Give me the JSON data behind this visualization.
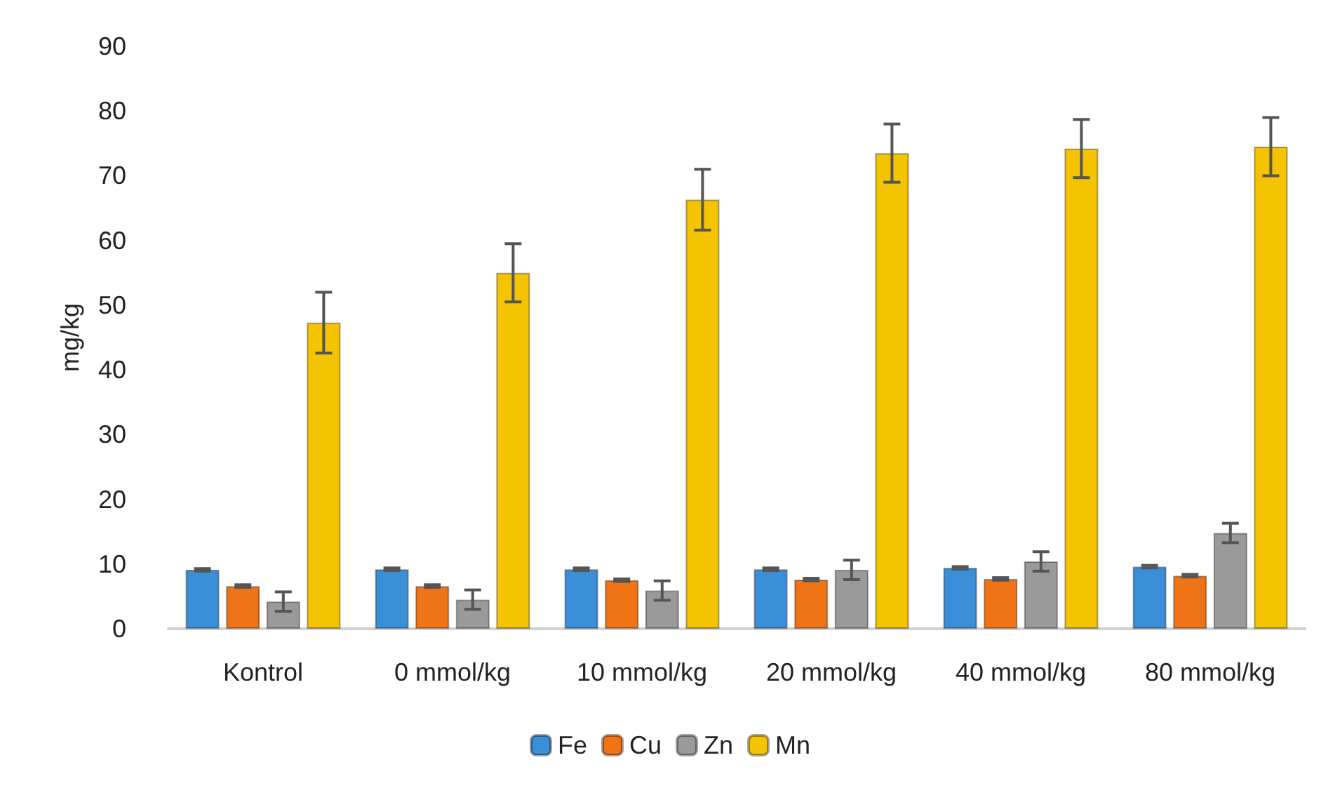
{
  "chart_data": {
    "type": "bar",
    "ylabel": "mg/kg",
    "categories": [
      "Kontrol",
      "0 mmol/kg",
      "10 mmol/kg",
      "20 mmol/kg",
      "40 mmol/kg",
      "80 mmol/kg"
    ],
    "series": [
      {
        "name": "Fe",
        "color": "#3b8ed8",
        "values": [
          9.1,
          9.2,
          9.2,
          9.2,
          9.4,
          9.6
        ],
        "errors": [
          0.2,
          0.2,
          0.2,
          0.2,
          0.2,
          0.2
        ]
      },
      {
        "name": "Cu",
        "color": "#f07416",
        "values": [
          6.6,
          6.6,
          7.5,
          7.6,
          7.7,
          8.2
        ],
        "errors": [
          0.2,
          0.2,
          0.2,
          0.2,
          0.2,
          0.2
        ]
      },
      {
        "name": "Zn",
        "color": "#9a9a9a",
        "values": [
          4.2,
          4.5,
          5.9,
          9.1,
          10.4,
          14.8
        ],
        "errors": [
          1.5,
          1.5,
          1.5,
          1.5,
          1.5,
          1.5
        ]
      },
      {
        "name": "Mn",
        "color": "#f5c400",
        "values": [
          47.3,
          55,
          66.3,
          73.5,
          74.2,
          74.5
        ],
        "errors": [
          4.7,
          4.5,
          4.7,
          4.5,
          4.5,
          4.5
        ]
      }
    ],
    "ylim": [
      0,
      90
    ],
    "yticks": [
      0,
      10,
      20,
      30,
      40,
      50,
      60,
      70,
      80,
      90
    ],
    "grid": false,
    "legend": "bottom"
  }
}
